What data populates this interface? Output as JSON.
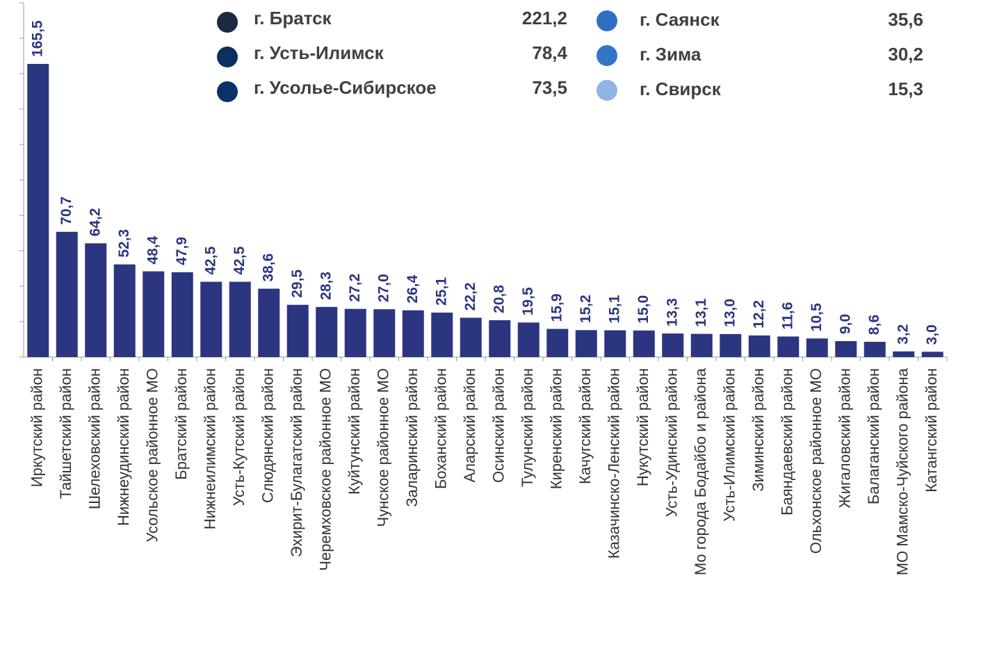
{
  "chart_data": {
    "type": "bar",
    "categories": [
      "Иркутский район",
      "Тайшетский район",
      "Шелеховский район",
      "Нижнеудинский район",
      "Усольское районное МО",
      "Братский район",
      "Нижнеилимский район",
      "Усть-Кутский район",
      "Слюдянский район",
      "Эхирит-Булагатский район",
      "Черемховское районное МО",
      "Куйтунский район",
      "Чунское районное МО",
      "Заларинский район",
      "Боханский район",
      "Аларский район",
      "Осинский район",
      "Тулунский район",
      "Киренский район",
      "Качугский район",
      "Казачинско-Ленский район",
      "Нукутский район",
      "Усть-Удинский район",
      "Мо города Бодайбо и района",
      "Усть-Илимский район",
      "Зиминский район",
      "Баяндаевский район",
      "Ольхонское районное МО",
      "Жигаловский район",
      "Балаганский район",
      "МО Мамско-Чуйского района",
      "Катангский район"
    ],
    "values": [
      165.5,
      70.7,
      64.2,
      52.3,
      48.4,
      47.9,
      42.5,
      42.5,
      38.6,
      29.5,
      28.3,
      27.2,
      27.0,
      26.4,
      25.1,
      22.2,
      20.8,
      19.5,
      15.9,
      15.2,
      15.1,
      15.0,
      13.3,
      13.1,
      13.0,
      12.2,
      11.6,
      10.5,
      9.0,
      8.6,
      3.2,
      3.0
    ],
    "value_labels": [
      "165,5",
      "70,7",
      "64,2",
      "52,3",
      "48,4",
      "47,9",
      "42,5",
      "42,5",
      "38,6",
      "29,5",
      "28,3",
      "27,2",
      "27,0",
      "26,4",
      "25,1",
      "22,2",
      "20,8",
      "19,5",
      "15,9",
      "15,2",
      "15,1",
      "15,0",
      "13,3",
      "13,1",
      "13,0",
      "12,2",
      "11,6",
      "10,5",
      "9,0",
      "8,6",
      "3,2",
      "3,0"
    ],
    "color": "#2b3580",
    "ylim": [
      0,
      200
    ],
    "yticks": [
      0,
      20,
      40,
      60,
      80,
      100,
      120,
      140,
      160,
      180,
      200
    ],
    "cities": [
      {
        "name": "г. Братск",
        "label": "221,2",
        "color": "#1b2a3f"
      },
      {
        "name": "г. Усть-Илимск",
        "label": "78,4",
        "color": "#0d2f5e"
      },
      {
        "name": "г. Усолье-Сибирское",
        "label": "73,5",
        "color": "#0d3068"
      },
      {
        "name": "г. Саянск",
        "label": "35,6",
        "color": "#2e6fc4"
      },
      {
        "name": "г. Зима",
        "label": "30,2",
        "color": "#3274c8"
      },
      {
        "name": "г. Свирск",
        "label": "15,3",
        "color": "#8fb5e3"
      }
    ]
  }
}
